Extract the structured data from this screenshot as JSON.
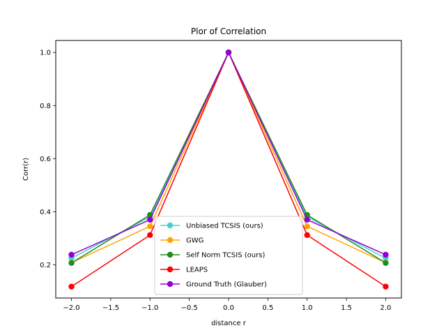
{
  "chart_data": {
    "type": "line",
    "title": "Plor of Correlation",
    "xlabel": "distance r",
    "ylabel": "Corr(r)",
    "xlim": [
      -2.2,
      2.2
    ],
    "ylim": [
      0.075,
      1.045
    ],
    "x": [
      -2.0,
      -1.0,
      0.0,
      1.0,
      2.0
    ],
    "xticks": [
      -2.0,
      -1.5,
      -1.0,
      -0.5,
      0.0,
      0.5,
      1.0,
      1.5,
      2.0
    ],
    "xtick_labels": [
      "−2.0",
      "−1.5",
      "−1.0",
      "−0.5",
      "0.0",
      "0.5",
      "1.0",
      "1.5",
      "2.0"
    ],
    "yticks": [
      0.2,
      0.4,
      0.6,
      0.8,
      1.0
    ],
    "ytick_labels": [
      "0.2",
      "0.4",
      "0.6",
      "0.8",
      "1.0"
    ],
    "grid": false,
    "legend_position": "lower-center",
    "series": [
      {
        "name": "Unbiased TCSIS (ours)",
        "color": "#48d1cc",
        "values": [
          0.225,
          0.38,
          1.0,
          0.38,
          0.225
        ]
      },
      {
        "name": "GWG",
        "color": "#ffa500",
        "values": [
          0.208,
          0.345,
          1.0,
          0.345,
          0.208
        ]
      },
      {
        "name": "Self Norm TCSIS (ours)",
        "color": "#228b22",
        "values": [
          0.207,
          0.388,
          1.0,
          0.388,
          0.207
        ]
      },
      {
        "name": "LEAPS",
        "color": "#ff0000",
        "values": [
          0.118,
          0.312,
          1.0,
          0.312,
          0.118
        ]
      },
      {
        "name": "Ground Truth (Glauber)",
        "color": "#9400d3",
        "values": [
          0.238,
          0.37,
          1.0,
          0.37,
          0.238
        ]
      }
    ]
  }
}
